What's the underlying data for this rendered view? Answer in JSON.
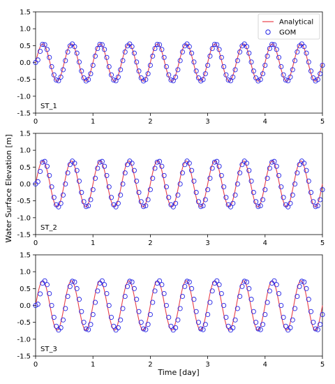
{
  "figure": {
    "xlabel": "Time [day]",
    "ylabel": "Water Surface Elevation [m]"
  },
  "legend": {
    "placement": "top-right",
    "entries": [
      "Analytical",
      "GOM"
    ]
  },
  "colors": {
    "analytical": "#e8404a",
    "gom": "#2323e6"
  },
  "chart_data": [
    {
      "type": "line",
      "station": "ST_1",
      "xlim": [
        0,
        5
      ],
      "ylim": [
        -1.5,
        1.5
      ],
      "x_ticks": [
        0,
        1,
        2,
        3,
        4,
        5
      ],
      "y_ticks": [
        -1.5,
        -1.0,
        -0.5,
        0.0,
        0.5,
        1.0,
        1.5
      ],
      "grid": false,
      "series": [
        {
          "name": "Analytical",
          "style": "solid-line",
          "amplitude": 0.55,
          "period_days": 0.5,
          "phase_days": 0.0,
          "x_start": 0,
          "x_end": 5
        },
        {
          "name": "GOM",
          "style": "open-circle-markers",
          "amplitude": 0.55,
          "period_days": 0.5,
          "phase_days": 0.012,
          "marker_spacing_days": 0.04,
          "x_start": 0,
          "x_end": 5
        }
      ]
    },
    {
      "type": "line",
      "station": "ST_2",
      "xlim": [
        0,
        5
      ],
      "ylim": [
        -1.5,
        1.5
      ],
      "x_ticks": [
        0,
        1,
        2,
        3,
        4,
        5
      ],
      "y_ticks": [
        -1.5,
        -1.0,
        -0.5,
        0.0,
        0.5,
        1.0,
        1.5
      ],
      "grid": false,
      "series": [
        {
          "name": "Analytical",
          "style": "solid-line",
          "amplitude": 0.68,
          "period_days": 0.5,
          "phase_days": 0.0,
          "x_start": 0,
          "x_end": 5
        },
        {
          "name": "GOM",
          "style": "open-circle-markers",
          "amplitude": 0.68,
          "period_days": 0.5,
          "phase_days": 0.02,
          "marker_spacing_days": 0.04,
          "x_start": 0,
          "x_end": 5
        }
      ]
    },
    {
      "type": "line",
      "station": "ST_3",
      "xlim": [
        0,
        5
      ],
      "ylim": [
        -1.5,
        1.5
      ],
      "x_ticks": [
        0,
        1,
        2,
        3,
        4,
        5
      ],
      "y_ticks": [
        -1.5,
        -1.0,
        -0.5,
        0.0,
        0.5,
        1.0,
        1.5
      ],
      "grid": false,
      "series": [
        {
          "name": "Analytical",
          "style": "solid-line",
          "amplitude": 0.73,
          "period_days": 0.5,
          "phase_days": 0.0,
          "x_start": 0,
          "x_end": 5
        },
        {
          "name": "GOM",
          "style": "open-circle-markers",
          "amplitude": 0.73,
          "period_days": 0.5,
          "phase_days": 0.03,
          "marker_spacing_days": 0.04,
          "x_start": 0,
          "x_end": 5
        }
      ]
    }
  ]
}
